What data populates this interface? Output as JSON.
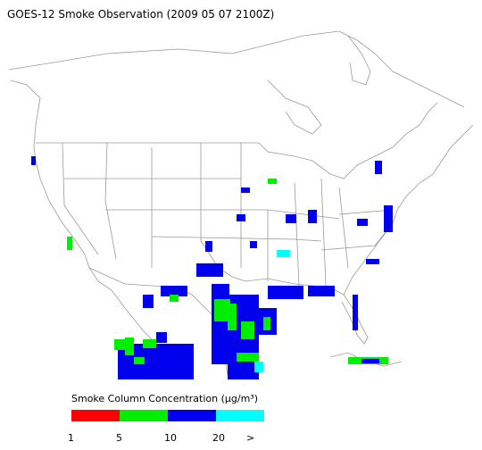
{
  "title": "GOES-12 Smoke Observation (2009 05 07  2100Z)",
  "legend": {
    "title": "Smoke Column Concentration (μg/m³)",
    "colors": [
      "#ff0000",
      "#00ee00",
      "#0000ee",
      "#00ffff"
    ],
    "ticks": [
      1,
      5,
      10,
      20
    ],
    "overflow_label": ">"
  }
}
